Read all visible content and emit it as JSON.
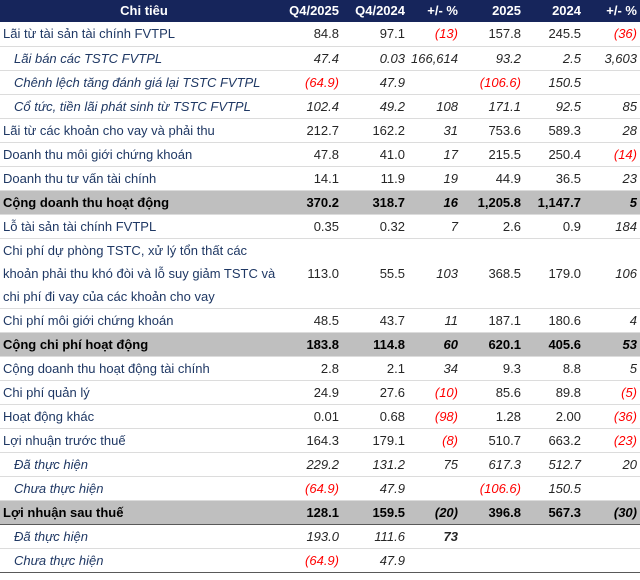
{
  "colors": {
    "header_bg": "#16255B",
    "header_text": "#FFFFFF",
    "label_color": "#1F3864",
    "number_color": "#262626",
    "total_bg": "#BFBFBF",
    "total_text": "#000000",
    "negative": "#FF0000",
    "row_rule": "#DCDCDC",
    "dark_rule": "#595959"
  },
  "chart_data": {
    "type": "table",
    "item_header": "Chi tiêu",
    "columns": [
      "Q4/2025",
      "Q4/2024",
      "+/- %",
      "2025",
      "2024",
      "+/- %"
    ],
    "rows": [
      {
        "label": "Lãi từ tài sản tài chính FVTPL",
        "type": "normal",
        "values": [
          "84.8",
          "97.1",
          "(13)",
          "157.8",
          "245.5",
          "(36)"
        ]
      },
      {
        "label": "Lãi bán các TSTC FVTPL",
        "type": "sub",
        "values": [
          "47.4",
          "0.03",
          "166,614",
          "93.2",
          "2.5",
          "3,603"
        ]
      },
      {
        "label": "Chênh lệch tăng đánh giá lại TSTC FVTPL",
        "type": "sub",
        "values": [
          "(64.9)",
          "47.9",
          "",
          "(106.6)",
          "150.5",
          ""
        ]
      },
      {
        "label": "Cổ tức, tiền lãi phát sinh từ TSTC FVTPL",
        "type": "sub",
        "values": [
          "102.4",
          "49.2",
          "108",
          "171.1",
          "92.5",
          "85"
        ]
      },
      {
        "label": "Lãi từ các khoản cho vay và phải thu",
        "type": "normal",
        "values": [
          "212.7",
          "162.2",
          "31",
          "753.6",
          "589.3",
          "28"
        ]
      },
      {
        "label": "Doanh thu môi giới chứng khoán",
        "type": "normal",
        "values": [
          "47.8",
          "41.0",
          "17",
          "215.5",
          "250.4",
          "(14)"
        ]
      },
      {
        "label": "Doanh thu tư vấn tài chính",
        "type": "normal",
        "values": [
          "14.1",
          "11.9",
          "19",
          "44.9",
          "36.5",
          "23"
        ]
      },
      {
        "label": "Cộng doanh thu hoạt động",
        "type": "total",
        "values": [
          "370.2",
          "318.7",
          "16",
          "1,205.8",
          "1,147.7",
          "5"
        ]
      },
      {
        "label": "Lỗ tài sản tài chính FVTPL",
        "type": "normal",
        "values": [
          "0.35",
          "0.32",
          "7",
          "2.6",
          "0.9",
          "184"
        ]
      },
      {
        "label": "Chi phí dự phòng TSTC, xử lý tổn thất các khoản phải thu khó đòi và lỗ suy giảm TSTC và chi phí đi vay của các khoản cho vay",
        "type": "normal",
        "values": [
          "113.0",
          "55.5",
          "103",
          "368.5",
          "179.0",
          "106"
        ]
      },
      {
        "label": "Chi phí môi giới chứng khoán",
        "type": "normal",
        "values": [
          "48.5",
          "43.7",
          "11",
          "187.1",
          "180.6",
          "4"
        ]
      },
      {
        "label": "Cộng chi phí hoạt động",
        "type": "total",
        "values": [
          "183.8",
          "114.8",
          "60",
          "620.1",
          "405.6",
          "53"
        ]
      },
      {
        "label": "Cộng doanh thu hoạt động tài chính",
        "type": "normal",
        "values": [
          "2.8",
          "2.1",
          "34",
          "9.3",
          "8.8",
          "5"
        ]
      },
      {
        "label": "Chi phí quản lý",
        "type": "normal",
        "values": [
          "24.9",
          "27.6",
          "(10)",
          "85.6",
          "89.8",
          "(5)"
        ]
      },
      {
        "label": "Hoạt động khác",
        "type": "normal",
        "values": [
          "0.01",
          "0.68",
          "(98)",
          "1.28",
          "2.00",
          "(36)"
        ]
      },
      {
        "label": "Lợi nhuận trước thuế",
        "type": "normal",
        "values": [
          "164.3",
          "179.1",
          "(8)",
          "510.7",
          "663.2",
          "(23)"
        ]
      },
      {
        "label": "Đã thực hiện",
        "type": "sub",
        "values": [
          "229.2",
          "131.2",
          "75",
          "617.3",
          "512.7",
          "20"
        ]
      },
      {
        "label": "Chưa thực hiện",
        "type": "sub",
        "values": [
          "(64.9)",
          "47.9",
          "",
          "(106.6)",
          "150.5",
          ""
        ]
      },
      {
        "label": "Lợi nhuận sau thuế",
        "type": "total",
        "values": [
          "128.1",
          "159.5",
          "(20)",
          "396.8",
          "567.3",
          "(30)"
        ],
        "rule": "dark-bottom"
      },
      {
        "label": "Đã thực hiện",
        "type": "sub",
        "values": [
          "193.0",
          "111.6",
          "73",
          "",
          "",
          ""
        ],
        "bold_cols": [
          2
        ]
      },
      {
        "label": "Chưa thực hiện",
        "type": "sub",
        "values": [
          "(64.9)",
          "47.9",
          "",
          "",
          "",
          ""
        ],
        "rule": "dark-bottom"
      }
    ]
  }
}
